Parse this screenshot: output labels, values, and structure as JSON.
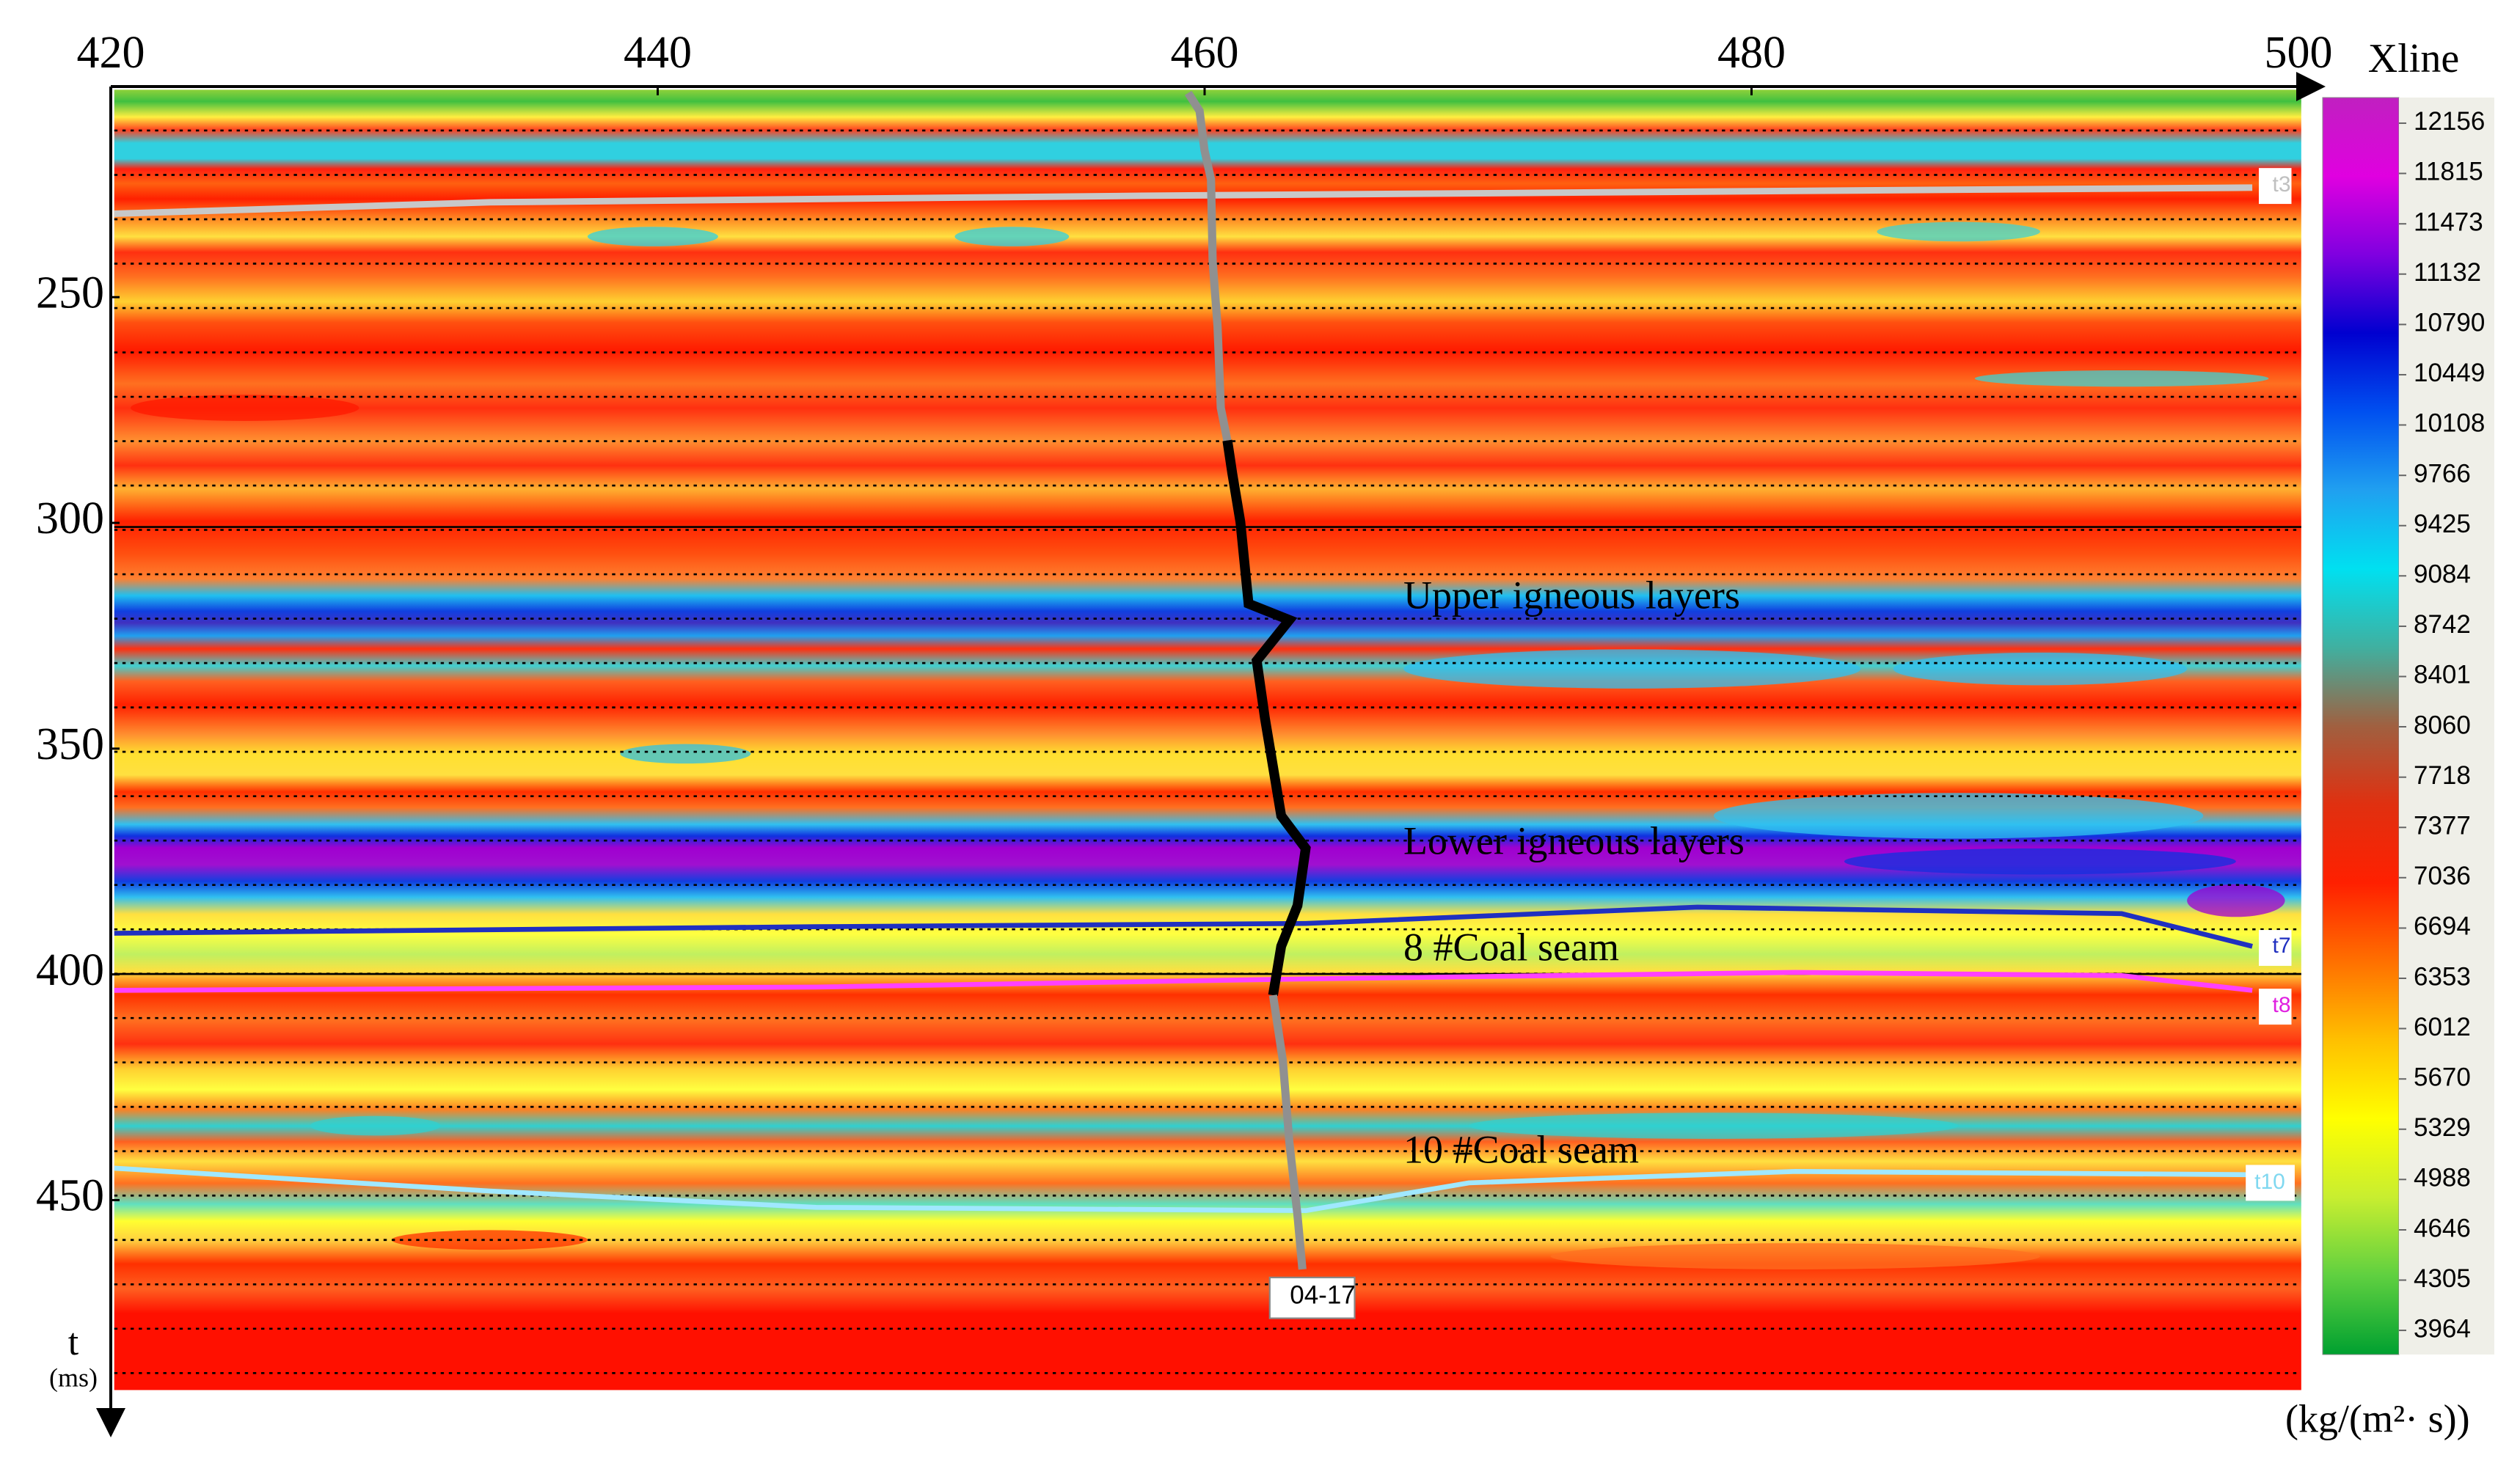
{
  "chart_data": {
    "type": "heatmap",
    "xlim": [
      420,
      500
    ],
    "xticks": [
      420,
      440,
      460,
      480,
      500
    ],
    "ylim": [
      204,
      492
    ],
    "yticks": [
      250,
      300,
      350,
      400,
      450
    ],
    "y_label": "t",
    "y_unit": "(ms)",
    "colorbar": {
      "title": "Xline",
      "unit": "(kg/(m²· s))",
      "lim": [
        3800,
        12330
      ],
      "ticks": [
        3964,
        4305,
        4646,
        4988,
        5329,
        5670,
        6012,
        6353,
        6694,
        7036,
        7377,
        7718,
        8060,
        8401,
        8742,
        9084,
        9425,
        9766,
        10108,
        10449,
        10790,
        11132,
        11473,
        11815,
        12156
      ],
      "colormap": [
        "#00a030",
        "#5fd040",
        "#c8ee30",
        "#ffff00",
        "#ffc000",
        "#ff7000",
        "#ff2000",
        "#e03010",
        "#a06040",
        "#40b0a0",
        "#00e0f0",
        "#20a0f0",
        "#0050f0",
        "#0000d0",
        "#8000e0",
        "#e000e0",
        "#c020c0"
      ]
    },
    "annotations": [
      "Upper igneous layers",
      "Lower igneous layers",
      "8 #Coal seam",
      "10 #Coal seam"
    ],
    "horizons": [
      "t3",
      "t7",
      "t8",
      "t10"
    ],
    "well": "04-17"
  }
}
